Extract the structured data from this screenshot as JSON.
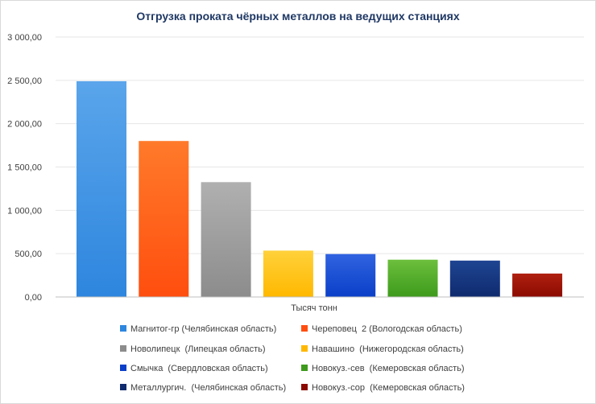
{
  "chart_data": {
    "type": "bar",
    "title": "Отгрузка проката чёрных металлов на ведущих станциях",
    "xlabel": "Тысяч тонн",
    "ylabel": "",
    "ylim": [
      0,
      3000
    ],
    "yticks": [
      {
        "value": 0,
        "label": "0,00"
      },
      {
        "value": 500,
        "label": "500,00"
      },
      {
        "value": 1000,
        "label": "1 000,00"
      },
      {
        "value": 1500,
        "label": "1 500,00"
      },
      {
        "value": 2000,
        "label": "2 000,00"
      },
      {
        "value": 2500,
        "label": "2 500,00"
      },
      {
        "value": 3000,
        "label": "3 000,00"
      }
    ],
    "grid": true,
    "legend_position": "bottom",
    "series": [
      {
        "name": "Магнитог-гр (Челябинская область)",
        "value": 2490,
        "color": "#2e86de",
        "color_light": "#5aa5eb"
      },
      {
        "name": "Череповец  2 (Вологодская область)",
        "value": 1800,
        "color": "#ff4e0f",
        "color_light": "#ff7a2a"
      },
      {
        "name": "Новолипецк  (Липецкая область)",
        "value": 1325,
        "color": "#8c8c8c",
        "color_light": "#b0b0b0"
      },
      {
        "name": "Навашино  (Нижегородская область)",
        "value": 535,
        "color": "#ffb800",
        "color_light": "#ffd13a"
      },
      {
        "name": "Смычка  (Свердловская область)",
        "value": 495,
        "color": "#0b3fc8",
        "color_light": "#2f63e0"
      },
      {
        "name": "Новокуз.-сев  (Кемеровская область)",
        "value": 430,
        "color": "#3e9a1c",
        "color_light": "#6cbf3c"
      },
      {
        "name": "Металлургич.  (Челябинская область)",
        "value": 420,
        "color": "#0f2a6e",
        "color_light": "#1e4592"
      },
      {
        "name": "Новокуз.-сор  (Кемеровская область)",
        "value": 270,
        "color": "#8b0a00",
        "color_light": "#b02010"
      }
    ]
  }
}
